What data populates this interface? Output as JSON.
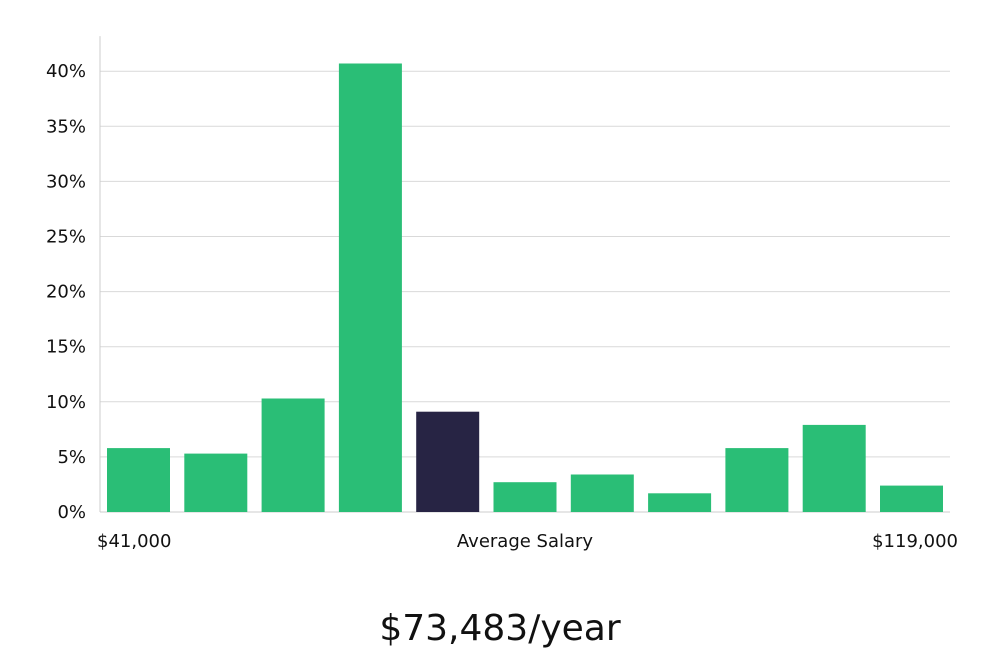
{
  "chart_data": {
    "type": "bar",
    "xlabel": "Average Salary",
    "x_start_label": "$41,000",
    "x_end_label": "$119,000",
    "ylim": [
      0,
      43
    ],
    "yticks": [
      0,
      5,
      10,
      15,
      20,
      25,
      30,
      35,
      40
    ],
    "ytick_suffix": "%",
    "grid": true,
    "values": [
      5.8,
      5.3,
      10.3,
      40.7,
      9.1,
      2.7,
      3.4,
      1.7,
      5.8,
      7.9,
      2.4
    ],
    "highlight_index": 4,
    "colors": {
      "bar": "#2abe76",
      "highlight": "#272444"
    }
  },
  "summary": {
    "salary_text": "$73,483/year"
  }
}
